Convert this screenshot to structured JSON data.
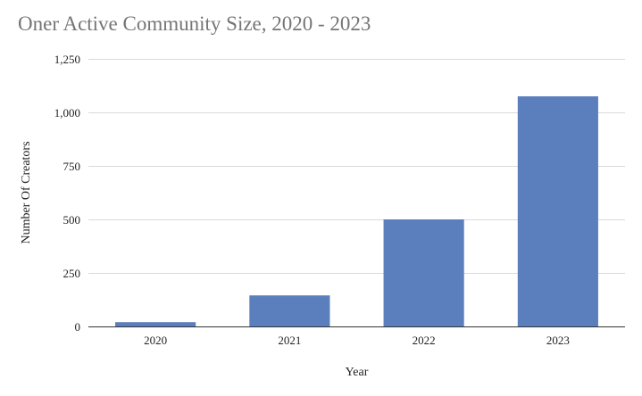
{
  "chart_data": {
    "type": "bar",
    "title": "Oner Active Community Size, 2020 - 2023",
    "xlabel": "Year",
    "ylabel": "Number Of Creators",
    "categories": [
      "2020",
      "2021",
      "2022",
      "2023"
    ],
    "values": [
      20,
      145,
      500,
      1075
    ],
    "ylim": [
      0,
      1250
    ],
    "yticks": [
      0,
      250,
      500,
      750,
      1000,
      1250
    ],
    "ytick_labels": [
      "0",
      "250",
      "500",
      "750",
      "1,000",
      "1,250"
    ],
    "grid": true,
    "legend": "none",
    "bar_color": "#5b7fbd",
    "grid_color": "#d9d9d9",
    "axis_color": "#333333"
  }
}
